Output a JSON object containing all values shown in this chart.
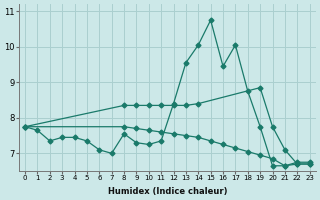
{
  "xlabel": "Humidex (Indice chaleur)",
  "xlim": [
    -0.5,
    23.5
  ],
  "ylim": [
    6.5,
    11.2
  ],
  "yticks": [
    7,
    8,
    9,
    10,
    11
  ],
  "xticks": [
    0,
    1,
    2,
    3,
    4,
    5,
    6,
    7,
    8,
    9,
    10,
    11,
    12,
    13,
    14,
    15,
    16,
    17,
    18,
    19,
    20,
    21,
    22,
    23
  ],
  "bg_color": "#cce8e8",
  "grid_color": "#aacfcf",
  "line_color": "#1a7a6a",
  "line1_x": [
    0,
    1,
    2,
    3,
    4,
    5,
    6,
    7,
    8,
    9,
    10,
    11,
    12,
    13,
    14,
    15,
    16,
    17,
    18,
    19,
    20,
    21,
    22,
    23
  ],
  "line1_y": [
    7.75,
    7.65,
    7.35,
    7.45,
    7.45,
    7.35,
    7.1,
    7.0,
    7.55,
    7.3,
    7.25,
    7.35,
    8.4,
    9.55,
    10.05,
    10.75,
    9.45,
    10.05,
    8.75,
    7.75,
    6.65,
    6.65,
    6.75,
    6.75
  ],
  "line2_x": [
    0,
    8,
    9,
    10,
    11,
    12,
    13,
    14,
    19,
    20,
    21,
    22,
    23
  ],
  "line2_y": [
    7.75,
    8.35,
    8.35,
    8.35,
    8.35,
    8.35,
    8.35,
    8.4,
    8.85,
    7.75,
    7.1,
    6.7,
    6.7
  ],
  "line3_x": [
    0,
    8,
    9,
    10,
    11,
    12,
    13,
    14,
    15,
    16,
    17,
    18,
    19,
    20,
    21,
    22,
    23
  ],
  "line3_y": [
    7.75,
    7.75,
    7.7,
    7.65,
    7.6,
    7.55,
    7.5,
    7.45,
    7.35,
    7.25,
    7.15,
    7.05,
    6.95,
    6.85,
    6.65,
    6.7,
    6.7
  ]
}
